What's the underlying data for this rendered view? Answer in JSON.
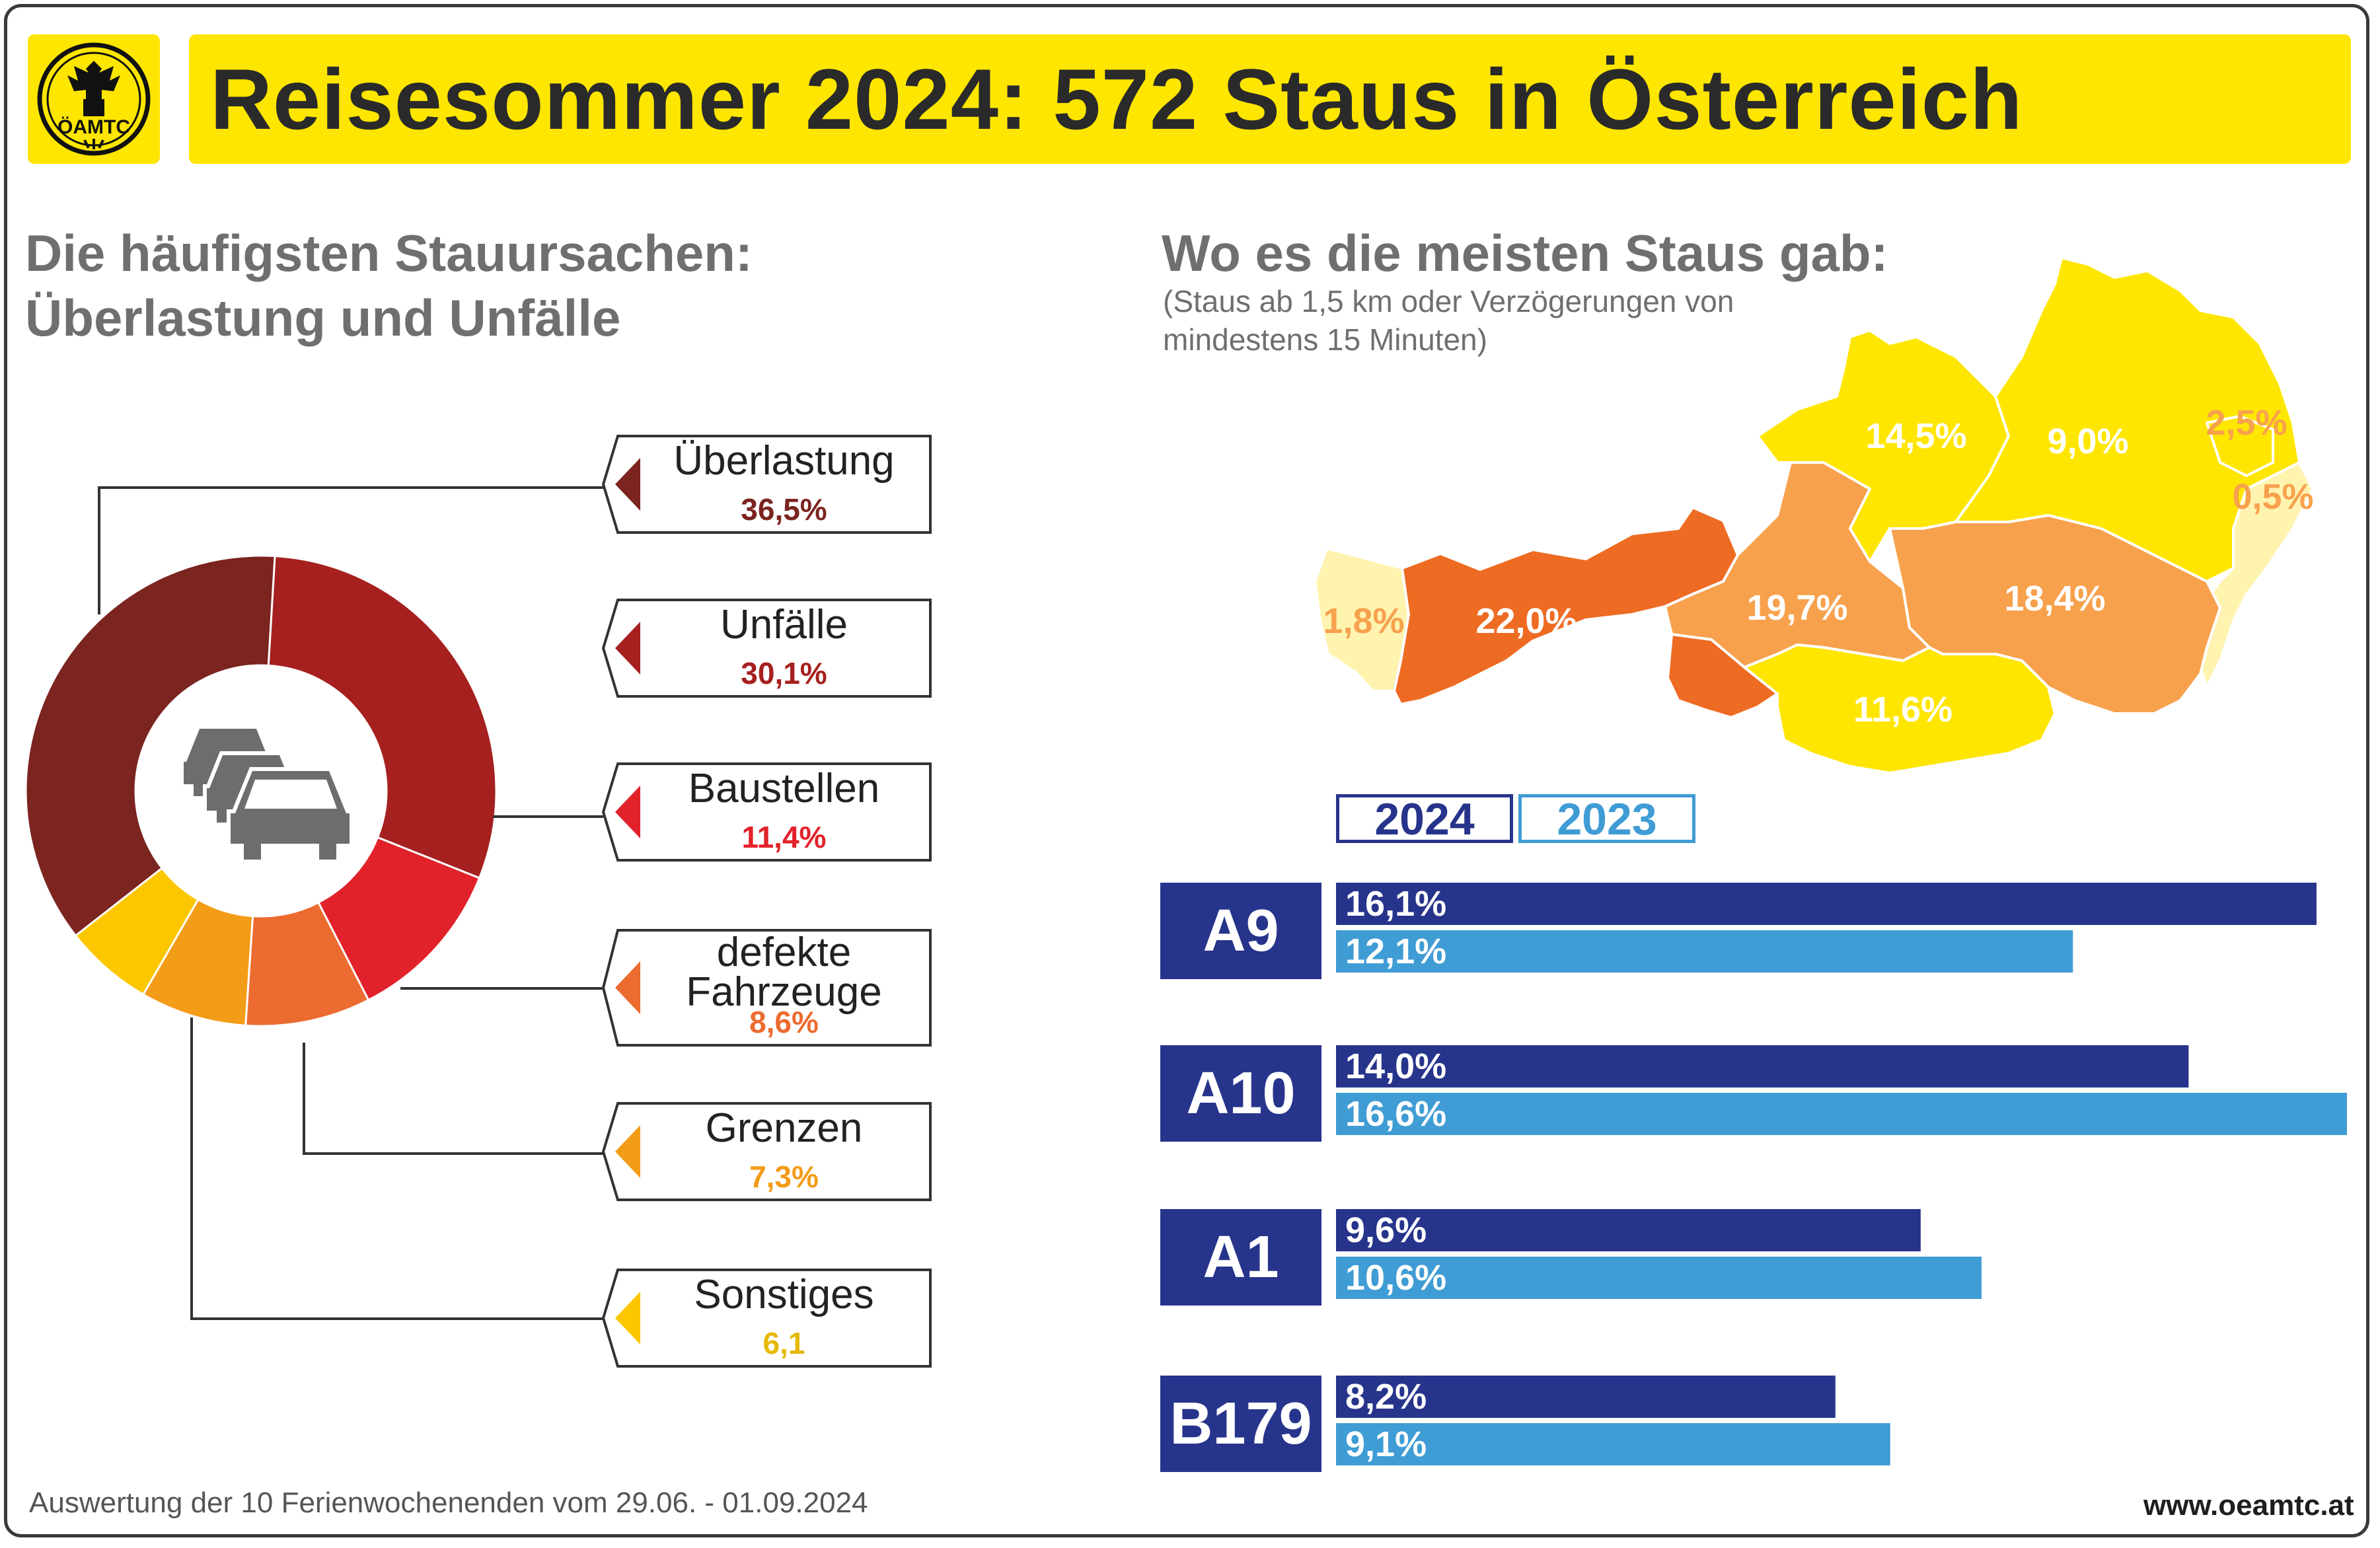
{
  "title": "Reisesommer 2024: 572 Staus in Österreich",
  "logo": {
    "icon": "oeamtc-eagle-logo",
    "text": "ÖAMTC"
  },
  "left": {
    "heading_line1": "Die häufigsten Stauursachen:",
    "heading_line2": "Überlastung und Unfälle",
    "center_icon": "cars-icon"
  },
  "right": {
    "heading": "Wo es die meisten Staus gab:",
    "note_line1": "(Staus ab 1,5 km oder Verzögerungen von",
    "note_line2": "mindestens 15 Minuten)"
  },
  "chart_data": [
    {
      "type": "pie",
      "variant": "donut",
      "categories": [
        "Überlastung",
        "Unfälle",
        "Baustellen",
        "defekte Fahrzeuge",
        "Grenzen",
        "Sonstiges"
      ],
      "label_lines": [
        [
          "Überlastung"
        ],
        [
          "Unfälle"
        ],
        [
          "Baustellen"
        ],
        [
          "defekte",
          "Fahrzeuge"
        ],
        [
          "Grenzen"
        ],
        [
          "Sonstiges"
        ]
      ],
      "values": [
        36.5,
        30.1,
        11.4,
        8.6,
        7.3,
        6.1
      ],
      "value_labels": [
        "36,5%",
        "30,1%",
        "11,4%",
        "8,6%",
        "7,3%",
        "6,1"
      ],
      "colors": [
        "#7b2420",
        "#a5201f",
        "#e2222a",
        "#ec6b30",
        "#f39c17",
        "#fdc700"
      ]
    },
    {
      "type": "map",
      "regions": [
        {
          "name": "Vorarlberg",
          "value": 1.8,
          "label": "1,8%",
          "color": "#fff3b0"
        },
        {
          "name": "Tirol",
          "value": 22.0,
          "label": "22,0%",
          "color": "#ee6b23"
        },
        {
          "name": "Osttirol",
          "value": null,
          "label": "",
          "color": "#ee6b23"
        },
        {
          "name": "Salzburg",
          "value": 19.7,
          "label": "19,7%",
          "color": "#f7a14d"
        },
        {
          "name": "Oberösterreich",
          "value": 14.5,
          "label": "14,5%",
          "color": "#ffe600"
        },
        {
          "name": "Niederösterreich",
          "value": 9.0,
          "label": "9,0%",
          "color": "#ffe600"
        },
        {
          "name": "Wien",
          "value": 2.5,
          "label": "2,5%",
          "color": "#ffe600"
        },
        {
          "name": "Burgenland",
          "value": 0.5,
          "label": "0,5%",
          "color": "#fff3b0"
        },
        {
          "name": "Steiermark",
          "value": 18.4,
          "label": "18,4%",
          "color": "#f7a14d"
        },
        {
          "name": "Kärnten",
          "value": 11.6,
          "label": "11,6%",
          "color": "#ffe600"
        }
      ]
    },
    {
      "type": "bar",
      "orientation": "horizontal",
      "categories": [
        "A9",
        "A10",
        "A1",
        "B179"
      ],
      "series": [
        {
          "name": "2024",
          "values": [
            16.1,
            14.0,
            9.6,
            8.2
          ],
          "labels": [
            "16,1%",
            "14,0%",
            "9,6%",
            "8,2%"
          ],
          "color": "#27348b"
        },
        {
          "name": "2023",
          "values": [
            12.1,
            16.6,
            10.6,
            9.1
          ],
          "labels": [
            "12,1%",
            "16,6%",
            "10,6%",
            "9,1%"
          ],
          "color": "#3f9cd4"
        }
      ],
      "xlim": [
        0,
        16.6
      ]
    }
  ],
  "footer": "Auswertung der 10 Ferienwochenenden vom 29.06. - 01.09.2024",
  "url": "www.oeamtc.at"
}
